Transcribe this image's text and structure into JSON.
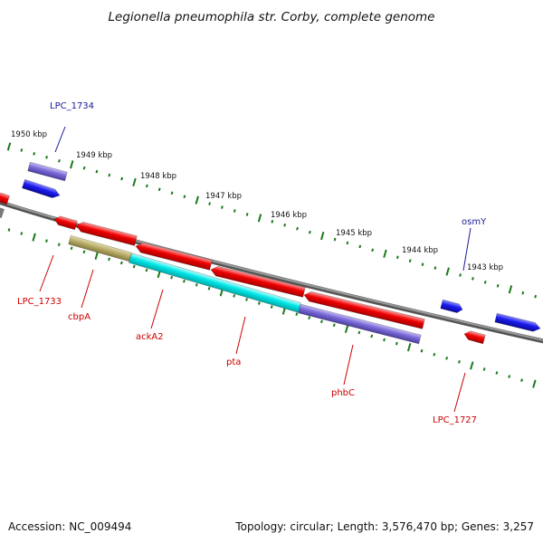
{
  "title": "Legionella pneumophila str. Corby, complete genome",
  "footer": {
    "accession": "Accession: NC_009494",
    "info": "Topology: circular; Length: 3,576,470 bp; Genes: 3,257"
  },
  "colors": {
    "backbone": "#808080",
    "tick": "#1a7a1a",
    "label_forward": "#1a1a99",
    "label_reverse": "#cc0000",
    "feature_red": "#ee0000",
    "feature_blue": "#1a1aee",
    "feature_purple": "#7a6ad8",
    "feature_cyan": "#00e6e6",
    "feature_olive": "#b8ad6a"
  },
  "scale_labels": [
    {
      "text": "1950 kbp"
    },
    {
      "text": "1949 kbp"
    },
    {
      "text": "1948 kbp"
    },
    {
      "text": "1947 kbp"
    },
    {
      "text": "1946 kbp"
    },
    {
      "text": "1945 kbp"
    },
    {
      "text": "1944 kbp"
    },
    {
      "text": "1943 kbp"
    }
  ],
  "gene_labels": [
    {
      "text": "LPC_1734",
      "strand": "forward"
    },
    {
      "text": "osmY",
      "strand": "forward"
    },
    {
      "text": "LPC_1733",
      "strand": "reverse"
    },
    {
      "text": "cbpA",
      "strand": "reverse"
    },
    {
      "text": "ackA2",
      "strand": "reverse"
    },
    {
      "text": "pta",
      "strand": "reverse"
    },
    {
      "text": "phbC",
      "strand": "reverse"
    },
    {
      "text": "LPC_1727",
      "strand": "reverse"
    }
  ]
}
